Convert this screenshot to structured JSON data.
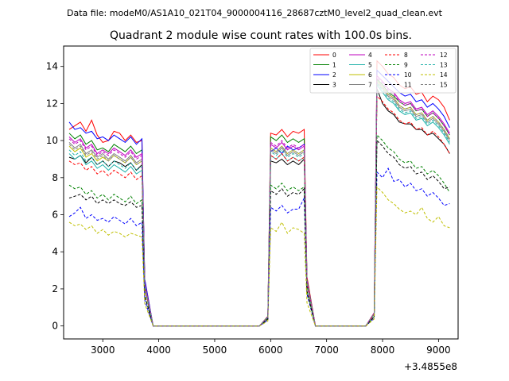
{
  "chart_data": {
    "type": "line",
    "suptitle": "Data file: modeM0/AS1A10_021T04_9000004116_28687cztM0_level2_quad_clean.evt",
    "title": "Quadrant 2 module wise count rates with 100.0s bins.",
    "xlabel": "",
    "ylabel": "",
    "offset_text": "+3.4855e8",
    "xlim": [
      2300,
      9350
    ],
    "ylim": [
      -0.7,
      15.1
    ],
    "xticks": [
      3000,
      4000,
      5000,
      6000,
      7000,
      8000,
      9000
    ],
    "xtick_labels": [
      "3000",
      "4000",
      "5000",
      "6000",
      "7000",
      "8000",
      "9000"
    ],
    "yticks": [
      0,
      2,
      4,
      6,
      8,
      10,
      12,
      14
    ],
    "ytick_labels": [
      "0",
      "2",
      "4",
      "6",
      "8",
      "10",
      "12",
      "14"
    ],
    "legend_position": "upper right",
    "legend_columns": 4,
    "segments": [
      {
        "start": 2400,
        "end": 3700
      },
      {
        "start": 6000,
        "end": 6600
      },
      {
        "start": 7900,
        "end": 9200
      }
    ],
    "series": [
      {
        "name": "0",
        "color": "#ff0000",
        "dashed": false,
        "seg1": [
          10.6,
          10.8,
          11.0,
          10.5,
          11.1,
          10.3,
          9.9,
          10.0,
          10.5,
          10.4,
          10.0,
          10.3,
          9.9,
          10.0
        ],
        "seg2": [
          10.4,
          10.3,
          10.6,
          10.2,
          10.5,
          10.4,
          10.6
        ],
        "seg3": [
          14.3,
          14.0,
          13.6,
          13.4,
          13.0,
          12.8,
          12.9,
          12.5,
          12.6,
          12.1,
          12.4,
          12.2,
          11.8,
          11.1
        ]
      },
      {
        "name": "1",
        "color": "#008000",
        "dashed": false,
        "seg1": [
          10.4,
          10.1,
          10.3,
          9.8,
          10.0,
          9.5,
          9.6,
          9.4,
          9.8,
          9.6,
          9.4,
          9.7,
          9.3,
          9.5
        ],
        "seg2": [
          10.2,
          10.0,
          10.3,
          9.9,
          10.1,
          9.9,
          10.1
        ],
        "seg3": [
          13.3,
          13.0,
          12.6,
          12.4,
          12.1,
          11.9,
          12.0,
          11.6,
          11.7,
          11.3,
          11.5,
          11.2,
          10.8,
          10.3
        ]
      },
      {
        "name": "2",
        "color": "#0000ff",
        "dashed": false,
        "seg1": [
          11.0,
          10.6,
          10.7,
          10.4,
          10.5,
          10.1,
          10.2,
          10.0,
          10.3,
          10.1,
          9.9,
          10.2,
          9.8,
          10.1
        ],
        "seg2": [
          9.4,
          9.6,
          9.3,
          9.7,
          9.5,
          9.6,
          9.8
        ],
        "seg3": [
          13.8,
          13.5,
          13.2,
          12.9,
          12.6,
          12.4,
          12.5,
          12.1,
          12.2,
          11.8,
          12.0,
          11.7,
          11.3,
          10.7
        ]
      },
      {
        "name": "3",
        "color": "#000000",
        "dashed": false,
        "seg1": [
          9.1,
          9.0,
          9.2,
          8.8,
          9.1,
          8.7,
          8.9,
          8.6,
          8.9,
          8.8,
          8.6,
          8.8,
          8.4,
          8.7
        ],
        "seg2": [
          8.9,
          8.8,
          9.0,
          8.7,
          8.9,
          8.7,
          9.0
        ],
        "seg3": [
          12.8,
          12.0,
          11.6,
          11.4,
          11.0,
          10.9,
          10.9,
          10.6,
          10.6,
          10.3,
          10.4,
          10.1,
          9.8,
          9.3
        ]
      },
      {
        "name": "4",
        "color": "#bf00bf",
        "dashed": false,
        "seg1": [
          10.2,
          9.9,
          10.1,
          9.6,
          9.8,
          9.3,
          9.5,
          9.3,
          9.6,
          9.4,
          9.2,
          9.5,
          9.1,
          9.3
        ],
        "seg2": [
          9.8,
          9.6,
          9.9,
          9.5,
          9.7,
          9.5,
          9.7
        ],
        "seg3": [
          13.5,
          13.2,
          12.8,
          12.6,
          12.2,
          12.0,
          12.1,
          11.7,
          11.8,
          11.4,
          11.6,
          11.3,
          10.9,
          10.4
        ]
      },
      {
        "name": "5",
        "color": "#20b2aa",
        "dashed": false,
        "seg1": [
          9.3,
          9.0,
          9.2,
          8.7,
          8.9,
          8.5,
          8.7,
          8.4,
          8.7,
          8.5,
          8.3,
          8.6,
          8.2,
          8.4
        ],
        "seg2": [
          9.2,
          9.0,
          9.3,
          8.9,
          9.1,
          8.9,
          9.1
        ],
        "seg3": [
          13.0,
          12.6,
          12.2,
          12.0,
          11.6,
          11.4,
          11.5,
          11.1,
          11.2,
          10.8,
          11.0,
          10.7,
          10.3,
          9.8
        ]
      },
      {
        "name": "6",
        "color": "#bfbf00",
        "dashed": false,
        "seg1": [
          9.7,
          9.4,
          9.6,
          9.1,
          9.3,
          8.9,
          9.1,
          8.9,
          9.2,
          9.0,
          8.8,
          9.1,
          8.7,
          8.9
        ],
        "seg2": [
          9.6,
          9.4,
          9.7,
          9.3,
          9.5,
          9.3,
          9.5
        ],
        "seg3": [
          13.2,
          12.9,
          12.5,
          12.3,
          11.9,
          11.7,
          11.8,
          11.4,
          11.5,
          11.1,
          11.3,
          11.0,
          10.6,
          10.1
        ]
      },
      {
        "name": "7",
        "color": "#808080",
        "dashed": false,
        "seg1": [
          9.9,
          9.6,
          9.8,
          9.3,
          9.5,
          9.1,
          9.3,
          9.0,
          9.3,
          9.1,
          8.9,
          9.2,
          8.8,
          9.0
        ],
        "seg2": [
          9.5,
          9.3,
          9.6,
          9.2,
          9.4,
          9.2,
          9.4
        ],
        "seg3": [
          13.1,
          12.8,
          12.4,
          12.2,
          11.8,
          11.6,
          11.7,
          11.3,
          11.4,
          11.0,
          11.2,
          10.9,
          10.5,
          10.0
        ]
      },
      {
        "name": "8",
        "color": "#ff0000",
        "dashed": true,
        "seg1": [
          8.9,
          8.7,
          8.8,
          8.4,
          8.6,
          8.2,
          8.4,
          8.1,
          8.4,
          8.2,
          8.0,
          8.3,
          7.9,
          8.1
        ],
        "seg2": [
          9.2,
          9.0,
          9.3,
          8.9,
          9.1,
          8.9,
          9.1
        ],
        "seg3": [
          12.4,
          12.1,
          11.7,
          11.5,
          11.1,
          10.9,
          11.0,
          10.6,
          10.7,
          10.3,
          10.5,
          10.2,
          9.8,
          9.3
        ]
      },
      {
        "name": "9",
        "color": "#008000",
        "dashed": true,
        "seg1": [
          7.6,
          7.4,
          7.5,
          7.1,
          7.3,
          6.9,
          7.1,
          6.8,
          7.1,
          6.9,
          6.7,
          7.0,
          6.6,
          6.8
        ],
        "seg2": [
          7.6,
          7.4,
          7.7,
          7.3,
          7.5,
          7.3,
          7.5
        ],
        "seg3": [
          10.3,
          10.0,
          9.6,
          9.4,
          9.0,
          8.8,
          8.9,
          8.5,
          8.6,
          8.2,
          8.4,
          8.1,
          7.7,
          7.2
        ]
      },
      {
        "name": "10",
        "color": "#0000ff",
        "dashed": true,
        "seg1": [
          5.9,
          6.1,
          6.4,
          5.8,
          6.0,
          5.7,
          5.8,
          5.6,
          5.9,
          5.7,
          5.5,
          5.8,
          5.4,
          5.6
        ],
        "seg2": [
          6.4,
          6.2,
          6.5,
          6.1,
          6.3,
          6.3,
          6.9
        ],
        "seg3": [
          8.3,
          8.0,
          8.5,
          7.8,
          7.9,
          7.5,
          7.7,
          7.3,
          7.4,
          7.0,
          7.2,
          6.9,
          6.5,
          6.6
        ]
      },
      {
        "name": "11",
        "color": "#000000",
        "dashed": true,
        "seg1": [
          6.9,
          7.0,
          7.1,
          6.8,
          7.0,
          6.6,
          6.8,
          6.6,
          6.8,
          6.6,
          6.5,
          6.7,
          6.4,
          6.5
        ],
        "seg2": [
          7.3,
          7.1,
          7.4,
          7.0,
          7.2,
          7.1,
          7.4
        ],
        "seg3": [
          10.0,
          9.7,
          9.3,
          9.1,
          8.7,
          8.5,
          8.6,
          8.2,
          8.3,
          7.9,
          8.1,
          7.8,
          7.4,
          7.5
        ]
      },
      {
        "name": "12",
        "color": "#bf00bf",
        "dashed": true,
        "seg1": [
          10.1,
          9.8,
          10.0,
          9.5,
          9.7,
          9.2,
          9.4,
          9.2,
          9.5,
          9.3,
          9.1,
          9.4,
          9.0,
          9.2
        ],
        "seg2": [
          9.9,
          9.7,
          10.0,
          9.6,
          9.8,
          9.6,
          9.8
        ],
        "seg3": [
          13.4,
          13.1,
          12.7,
          12.5,
          12.1,
          11.9,
          12.0,
          11.6,
          11.7,
          11.3,
          11.5,
          11.2,
          10.8,
          10.3
        ]
      },
      {
        "name": "13",
        "color": "#20b2aa",
        "dashed": true,
        "seg1": [
          9.5,
          9.2,
          9.4,
          8.9,
          9.1,
          8.7,
          8.9,
          8.6,
          8.9,
          8.7,
          8.5,
          8.8,
          8.4,
          8.6
        ],
        "seg2": [
          9.4,
          9.2,
          9.5,
          9.1,
          9.3,
          9.1,
          9.3
        ],
        "seg3": [
          13.1,
          12.7,
          12.3,
          12.1,
          11.7,
          11.5,
          11.6,
          11.2,
          11.3,
          10.9,
          11.1,
          10.8,
          10.4,
          9.9
        ]
      },
      {
        "name": "14",
        "color": "#bfbf00",
        "dashed": true,
        "seg1": [
          5.6,
          5.4,
          5.5,
          5.2,
          5.4,
          5.0,
          5.2,
          4.9,
          5.1,
          5.0,
          4.8,
          5.0,
          4.9,
          4.8
        ],
        "seg2": [
          5.3,
          5.1,
          5.6,
          5.0,
          5.3,
          5.2,
          5.0
        ],
        "seg3": [
          7.5,
          7.2,
          6.8,
          6.6,
          6.3,
          6.1,
          6.2,
          6.0,
          6.4,
          5.8,
          5.6,
          5.9,
          5.4,
          5.3
        ]
      },
      {
        "name": "15",
        "color": "#808080",
        "dashed": true,
        "seg1": [
          9.8,
          9.5,
          9.7,
          9.2,
          9.4,
          9.0,
          9.2,
          8.9,
          9.2,
          9.0,
          8.8,
          9.1,
          8.7,
          8.9
        ],
        "seg2": [
          9.6,
          9.4,
          9.7,
          9.3,
          9.5,
          9.3,
          9.5
        ],
        "seg3": [
          13.2,
          12.9,
          12.5,
          12.3,
          11.9,
          11.7,
          11.8,
          11.4,
          11.5,
          11.1,
          11.3,
          11.0,
          10.6,
          10.1
        ]
      }
    ]
  }
}
